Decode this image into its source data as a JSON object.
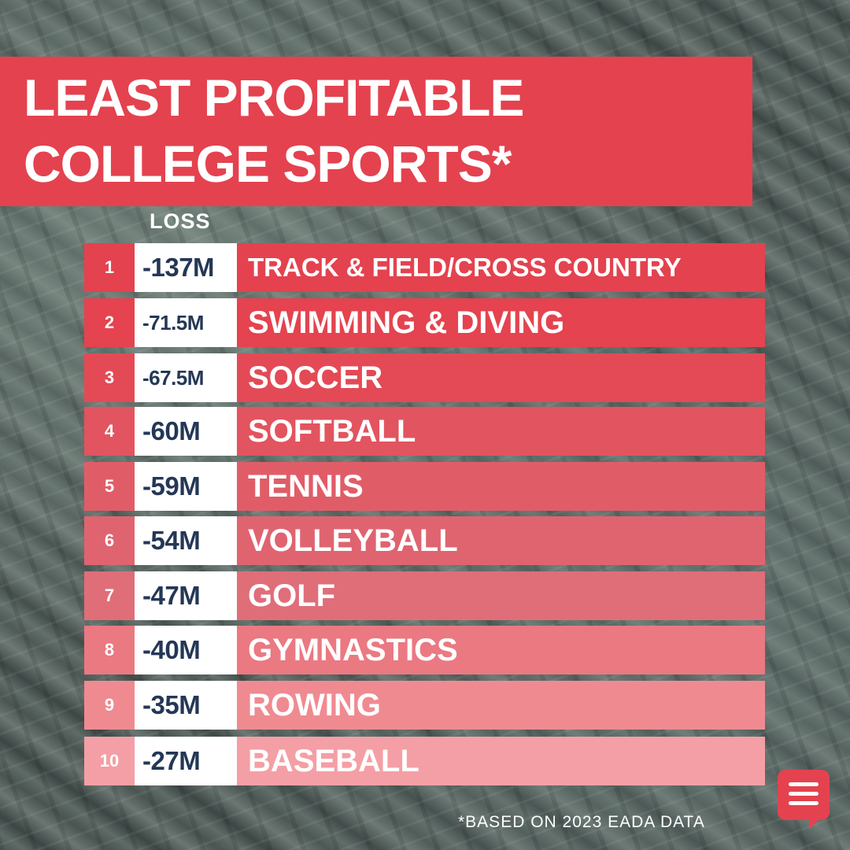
{
  "title": {
    "line1": "LEAST PROFITABLE",
    "line2": "COLLEGE SPORTS*"
  },
  "loss_header": "LOSS",
  "rows": [
    {
      "rank": "1",
      "value": "-137M",
      "sport": "TRACK & FIELD/CROSS COUNTRY",
      "color": "#e4424f"
    },
    {
      "rank": "2",
      "value": "-71.5M",
      "sport": "SWIMMING & DIVING",
      "color": "#e4434f"
    },
    {
      "rank": "3",
      "value": "-67.5M",
      "sport": "SOCCER",
      "color": "#e34a56"
    },
    {
      "rank": "4",
      "value": "-60M",
      "sport": "SOFTBALL",
      "color": "#e2545f"
    },
    {
      "rank": "5",
      "value": "-59M",
      "sport": "TENNIS",
      "color": "#e05d68"
    },
    {
      "rank": "6",
      "value": "-54M",
      "sport": "VOLLEYBALL",
      "color": "#df6470"
    },
    {
      "rank": "7",
      "value": "-47M",
      "sport": "GOLF",
      "color": "#df6e79"
    },
    {
      "rank": "8",
      "value": "-40M",
      "sport": "GYMNASTICS",
      "color": "#ea7982"
    },
    {
      "rank": "9",
      "value": "-35M",
      "sport": "ROWING",
      "color": "#f08a91"
    },
    {
      "rank": "10",
      "value": "-27M",
      "sport": "BASEBALL",
      "color": "#f49fa5"
    }
  ],
  "footnote": "*BASED ON 2023 EADA DATA",
  "accent": "#e4424f",
  "value_text_color": "#243756",
  "chat_icon": "chat-bubble-icon"
}
